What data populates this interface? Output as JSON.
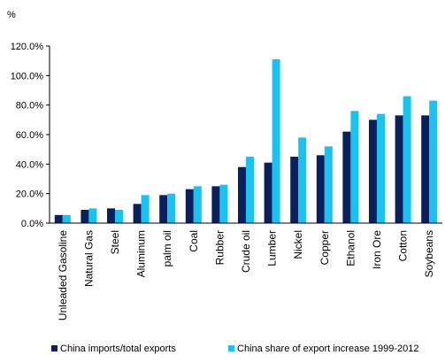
{
  "chart_data": {
    "type": "bar",
    "ylabel": "%",
    "ylim": [
      0,
      120
    ],
    "ytick_labels": [
      "0.0%",
      "20.0%",
      "40.0%",
      "60.0%",
      "80.0%",
      "100.0%",
      "120.0%"
    ],
    "grid": false,
    "legend_position": "bottom",
    "categories": [
      "Unleaded Gasoline",
      "Natural Gas",
      "Steel",
      "Aluminum",
      "palm oil",
      "Coal",
      "Rubber",
      "Crude oil",
      "Lumber",
      "Nickel",
      "Copper",
      "Ethanol",
      "Iron Ore",
      "Cotton",
      "Soybeans"
    ],
    "series": [
      {
        "name": "China imports/total exports",
        "color": "#0a1f5c",
        "values": [
          5.5,
          9,
          10,
          13,
          19,
          23,
          25,
          38,
          41,
          45,
          46,
          62,
          70,
          73,
          73
        ]
      },
      {
        "name": "China share of export increase 1999-2012",
        "color": "#19c3f0",
        "values": [
          5.5,
          10,
          9,
          19,
          20,
          25,
          26,
          45,
          111,
          58,
          52,
          76,
          74,
          86,
          83
        ]
      }
    ]
  }
}
